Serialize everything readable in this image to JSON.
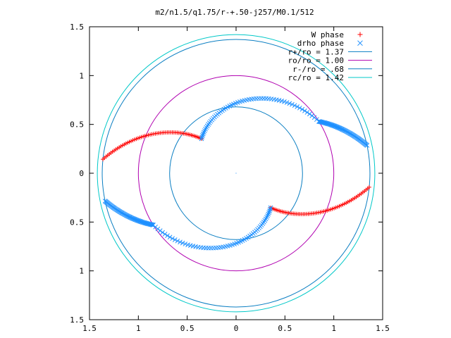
{
  "chart_data": {
    "type": "scatter",
    "title": "m2/n1.5/q1.75/r-+.50-j257/M0.1/512",
    "xlim": [
      -1.5,
      1.5
    ],
    "ylim": [
      -1.5,
      1.5
    ],
    "x_ticks": [
      "1.5",
      "1",
      "0.5",
      "0",
      "0.5",
      "1",
      "1.5"
    ],
    "y_ticks": [
      "1.5",
      "1",
      "0.5",
      "0",
      "0.5",
      "1",
      "1.5"
    ],
    "grid": false,
    "legend_position": "top-right",
    "series": [
      {
        "name": "W phase",
        "kind": "points",
        "marker": "plus",
        "color": "#ff0000",
        "arms": [
          {
            "r_start": 1.37,
            "r_end": 0.5,
            "angle_start_deg": 174,
            "angle_end_deg": 135
          },
          {
            "r_start": 1.37,
            "r_end": 0.5,
            "angle_start_deg": -6,
            "angle_end_deg": -45
          }
        ]
      },
      {
        "name": "drho phase",
        "kind": "points",
        "marker": "cross",
        "color": "#1e90ff",
        "arms": [
          {
            "r_start": 0.5,
            "r_end": 1.0,
            "angle_start_deg": 135,
            "angle_end_deg": 32
          },
          {
            "r_start": 1.0,
            "r_end": 1.37,
            "angle_start_deg": 32,
            "angle_end_deg": 12
          },
          {
            "r_start": 0.5,
            "r_end": 1.0,
            "angle_start_deg": -45,
            "angle_end_deg": -148
          },
          {
            "r_start": 1.0,
            "r_end": 1.37,
            "angle_start_deg": -148,
            "angle_end_deg": -168
          }
        ]
      },
      {
        "name": "r+/ro = 1.37",
        "kind": "circle",
        "radius": 1.37,
        "color": "#0a7ec2"
      },
      {
        "name": "ro/ro = 1.00",
        "kind": "circle",
        "radius": 1.0,
        "color": "#b000b0"
      },
      {
        "name": "r-/ro = .68",
        "kind": "circle",
        "radius": 0.68,
        "color": "#0a7ec2"
      },
      {
        "name": "rc/ro = 1.42",
        "kind": "circle",
        "radius": 1.42,
        "color": "#00c8c8"
      }
    ]
  }
}
